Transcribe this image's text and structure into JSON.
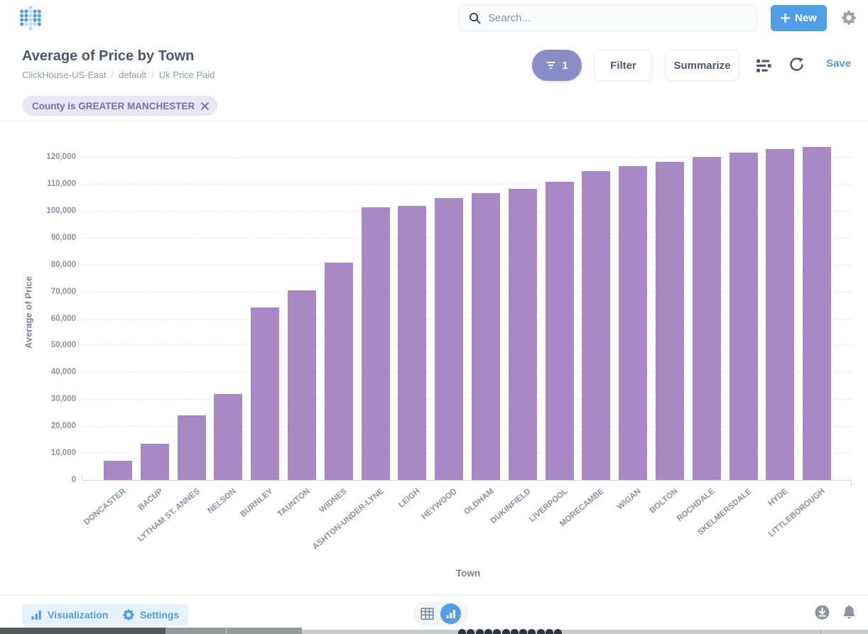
{
  "header": {
    "search_placeholder": "Search...",
    "new_label": "New"
  },
  "title_bar": {
    "title": "Average of Price by Town",
    "breadcrumb": [
      "ClickHouse-US-East",
      "default",
      "Uk Price Paid"
    ],
    "breadcrumb_separator": "/",
    "filter_count": "1",
    "filter_label": "Filter",
    "summarize_label": "Summarize",
    "save_label": "Save"
  },
  "filters": [
    {
      "label": "County is GREATER MANCHESTER"
    }
  ],
  "chart_data": {
    "type": "bar",
    "title": "Average of Price by Town",
    "xlabel": "Town",
    "ylabel": "Average of Price",
    "categories": [
      "DONCASTER",
      "BACUP",
      "LYTHAM ST. ANNES",
      "NELSON",
      "BURNLEY",
      "TAUNTON",
      "WIDNES",
      "ASHTON-UNDER-LYNE",
      "LEIGH",
      "HEYWOOD",
      "OLDHAM",
      "DUKINFIELD",
      "LIVERPOOL",
      "MORECAMBE",
      "WIGAN",
      "BOLTON",
      "ROCHDALE",
      "SKELMERSDALE",
      "HYDE",
      "LITTLEBOROUGH"
    ],
    "values": [
      7000,
      13400,
      24000,
      31900,
      64000,
      70400,
      80800,
      101200,
      101700,
      104700,
      106500,
      108200,
      110900,
      114800,
      116600,
      118100,
      120100,
      121600,
      122800,
      123700
    ],
    "ylim": [
      0,
      120000
    ],
    "yticks": [
      0,
      10000,
      20000,
      30000,
      40000,
      50000,
      60000,
      70000,
      80000,
      90000,
      100000,
      110000,
      120000
    ],
    "grid": "horizontal-dashed",
    "legend": "none",
    "bar_color": "#A989C5"
  },
  "footer": {
    "visualization_label": "Visualization",
    "settings_label": "Settings"
  },
  "colors": {
    "brand_blue": "#509EE3",
    "text_dark": "#4C5773",
    "text_gray": "#949AAB",
    "filter_purple": "#8A8CC8",
    "chip_bg": "#E9E5F2",
    "chip_text": "#7172AD",
    "bar_purple": "#A989C5"
  }
}
